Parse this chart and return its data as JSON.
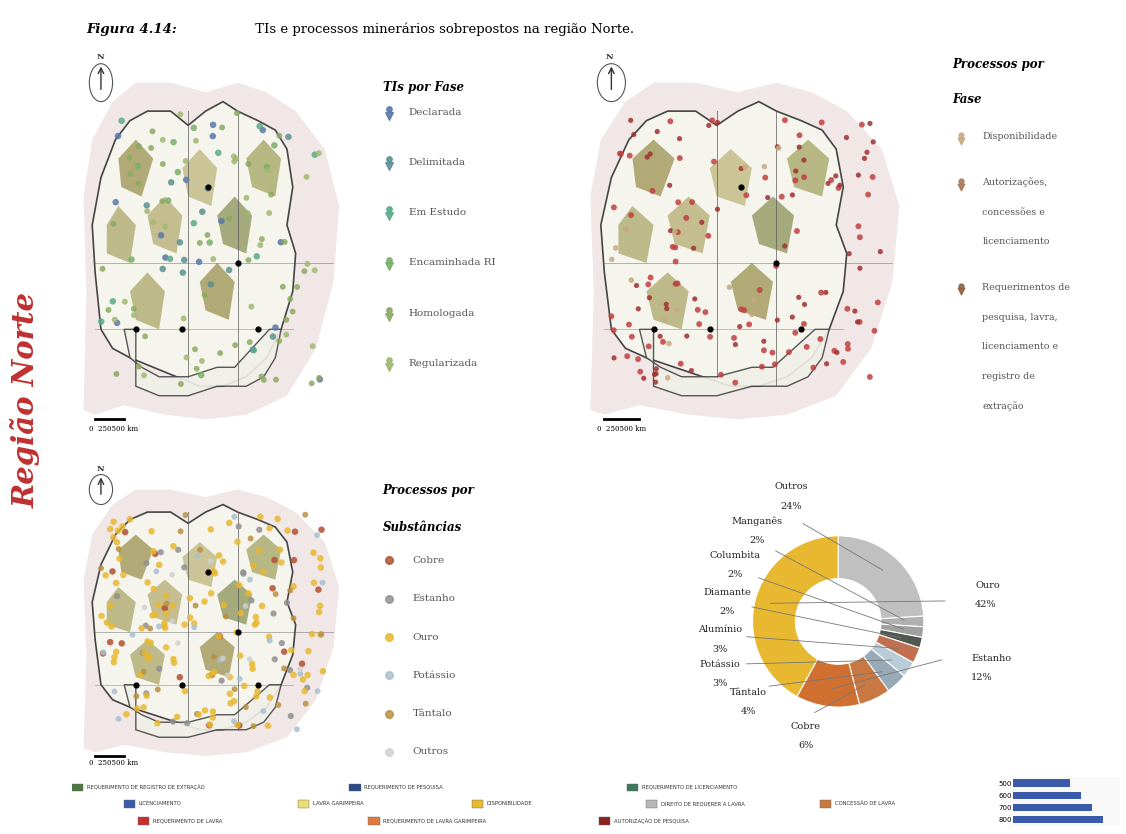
{
  "title_bold": "Figura 4.14:",
  "title_rest": " TIs e processos minerários sobrepostos na região Norte.",
  "side_label": "Região Norte",
  "panel_bg": "#f0e0e0",
  "map_inner_bg": "#f8f0f0",
  "tl_legend_title": "TIs por Fase",
  "tl_legend": [
    [
      "Declarada",
      "#5a78a8"
    ],
    [
      "Delimitada",
      "#5a9090"
    ],
    [
      "Em Estudo",
      "#5aaa88"
    ],
    [
      "Encaminhada RI",
      "#78b068"
    ],
    [
      "Homologada",
      "#8aaa60"
    ],
    [
      "Regularizada",
      "#a0b870"
    ]
  ],
  "tr_legend_title1": "Processos por",
  "tr_legend_title2": "Fase",
  "tr_legend": [
    [
      "Disponibilidade",
      "#c8a882"
    ],
    [
      "Autorizações,\nconcessões e\nlicenciamento",
      "#a87858"
    ],
    [
      "Requerimentos de\npesquisa, lavra,\nlicenciamento e\nregistro de\nextração",
      "#906040"
    ]
  ],
  "bl_legend_title1": "Processos por",
  "bl_legend_title2": "Substâncias",
  "bl_legend": [
    [
      "Cobre",
      "#b05030"
    ],
    [
      "Estanho",
      "#909090"
    ],
    [
      "Ouro",
      "#e8b830"
    ],
    [
      "Potássio",
      "#a8c0d0"
    ],
    [
      "Tântalo",
      "#b89040"
    ],
    [
      "Outros",
      "#d0d0d0"
    ]
  ],
  "map_region_color": "#e8e4d0",
  "map_region_edge": "#444444",
  "map_ti_colors": [
    "#b0aa70",
    "#a09858",
    "#b8b078",
    "#c0b880",
    "#909860",
    "#a8a868"
  ],
  "map_state_line_color": "#555555",
  "pie_labels": [
    "Outros",
    "Manganês",
    "Columbita",
    "Diamante",
    "Alumínio",
    "Potássio",
    "Tântalo",
    "Cobre",
    "Estanho",
    "Ouro"
  ],
  "pie_values": [
    24,
    2,
    2,
    2,
    3,
    3,
    4,
    6,
    12,
    42
  ],
  "pie_colors": [
    "#c0c0c0",
    "#b0b0b0",
    "#a0a0a0",
    "#505850",
    "#c07050",
    "#b8ccd8",
    "#98aab8",
    "#c87840",
    "#d07030",
    "#e8b830"
  ],
  "bottom_legend": [
    [
      "#4a7a40",
      "REQUERIMENTO DE REGISTRO DE EXTRAÇÃO"
    ],
    [
      "#2a4a8a",
      "REQUERIMENTO DE PESQUISA"
    ],
    [
      "#3a7a5a",
      "REQUERIMENTO DE LICENCIAMENTO"
    ],
    [
      "#3a5aaa",
      "LICENCIAMENTO"
    ],
    [
      "#e8e070",
      "LAVRA GARIMPEIRA"
    ],
    [
      "#e8b830",
      "DISPONIBILIDADE"
    ],
    [
      "#b8b8b8",
      "DIREITO DE REQUERER A LAVRA"
    ],
    [
      "#c87840",
      "CONCESSÃO DE LAVRA"
    ],
    [
      "#c83030",
      "REQUERIMENTO DE LAVRA"
    ],
    [
      "#e07840",
      "REQUERIMENTO DE LAVRA GARIMPEIRA"
    ],
    [
      "#8a2020",
      "AUTORIZAÇÃO DE PESQUISA"
    ]
  ],
  "bar_values": [
    800,
    700,
    600,
    500
  ],
  "bar_color": "#3a5aaa"
}
